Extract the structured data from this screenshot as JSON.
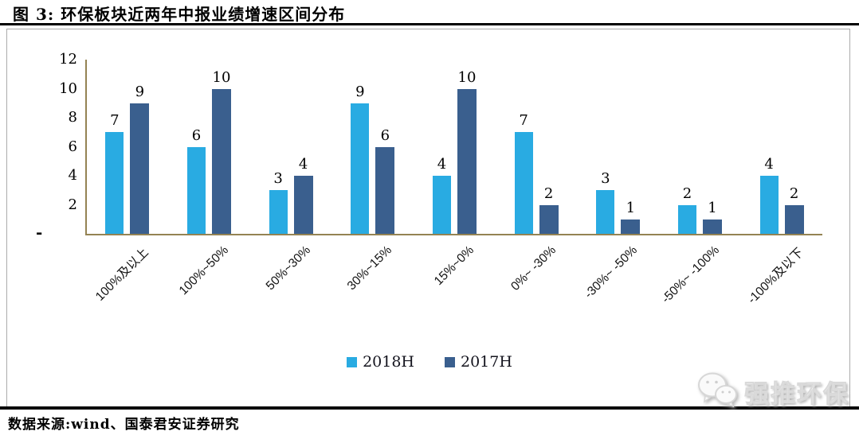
{
  "figure": {
    "title": "图 3: 环保板块近两年中报业绩增速区间分布",
    "source": "数据来源:wind、国泰君安证券研究",
    "watermark": {
      "icon": "wechat-icon",
      "text": "强推环保"
    }
  },
  "colors": {
    "series_2018H": "#29ABE2",
    "series_2017H": "#3A5F8E",
    "axis": "#948353",
    "title_rule": "#000000",
    "bottom_rule": "#0a0a0a",
    "box_border": "#ababab"
  },
  "chart_data": {
    "type": "bar",
    "title": "环保板块近两年中报业绩增速区间分布",
    "categories": [
      "100%及以上",
      "100%~50%",
      "50%~30%",
      "30%~15%",
      "15%~0%",
      "0%~ -30%",
      "-30%~ -50%",
      "-50%~ -100%",
      "-100%及以下"
    ],
    "series": [
      {
        "name": "2018H",
        "color": "#29ABE2",
        "values": [
          7,
          6,
          3,
          9,
          4,
          7,
          3,
          2,
          4
        ]
      },
      {
        "name": "2017H",
        "color": "#3A5F8E",
        "values": [
          9,
          10,
          4,
          6,
          10,
          2,
          1,
          1,
          2
        ]
      }
    ],
    "xlabel": "",
    "ylabel": "",
    "ylim": [
      0,
      12
    ],
    "yticks": [
      12,
      10,
      8,
      6,
      4,
      2
    ],
    "zero_tick_label": "-",
    "grid": false,
    "data_labels": true,
    "legend_position": "bottom",
    "x_label_rotation_deg": -45
  }
}
